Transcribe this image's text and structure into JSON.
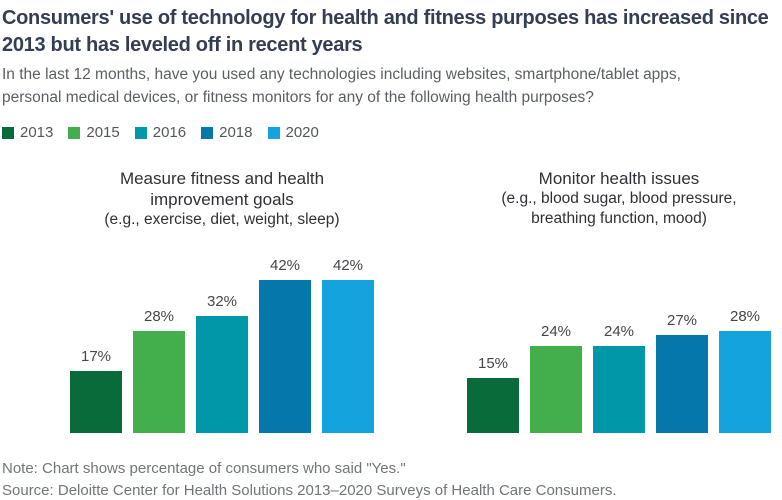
{
  "header": {
    "title": "Consumers' use of technology for health and fitness purposes has increased since 2013 but has leveled off in recent years",
    "subtitle": "In the last 12 months, have you used any technologies including websites, smartphone/tablet apps, personal medical devices, or fitness monitors for any of the following health purposes?"
  },
  "legend": {
    "position": "top-left",
    "items": [
      {
        "label": "2013",
        "color": "#0a6b3a"
      },
      {
        "label": "2015",
        "color": "#43ae4c"
      },
      {
        "label": "2016",
        "color": "#0097a8"
      },
      {
        "label": "2018",
        "color": "#0577aa"
      },
      {
        "label": "2020",
        "color": "#14a3dd"
      }
    ]
  },
  "chart_data": [
    {
      "type": "bar",
      "title": "Measure fitness and health improvement goals",
      "subtitle": "(e.g., exercise, diet, weight, sleep)",
      "categories": [
        "2013",
        "2015",
        "2016",
        "2018",
        "2020"
      ],
      "values": [
        17,
        28,
        32,
        42,
        42
      ],
      "value_labels": [
        "17%",
        "28%",
        "32%",
        "42%",
        "42%"
      ],
      "unit": "%",
      "ylim": [
        0,
        45
      ],
      "grid": false,
      "axes_shown": false,
      "colors": [
        "#0a6b3a",
        "#43ae4c",
        "#0097a8",
        "#0577aa",
        "#14a3dd"
      ]
    },
    {
      "type": "bar",
      "title": "Monitor health issues",
      "subtitle": "(e.g., blood sugar, blood pressure, breathing function, mood)",
      "categories": [
        "2013",
        "2015",
        "2016",
        "2018",
        "2020"
      ],
      "values": [
        15,
        24,
        24,
        27,
        28
      ],
      "value_labels": [
        "15%",
        "24%",
        "24%",
        "27%",
        "28%"
      ],
      "unit": "%",
      "ylim": [
        0,
        45
      ],
      "grid": false,
      "axes_shown": false,
      "colors": [
        "#0a6b3a",
        "#43ae4c",
        "#0097a8",
        "#0577aa",
        "#14a3dd"
      ]
    }
  ],
  "footer": {
    "note": "Note: Chart shows percentage of consumers who said \"Yes.\"",
    "source": "Source: Deloitte Center for Health Solutions 2013–2020 Surveys of Health Care Consumers."
  }
}
